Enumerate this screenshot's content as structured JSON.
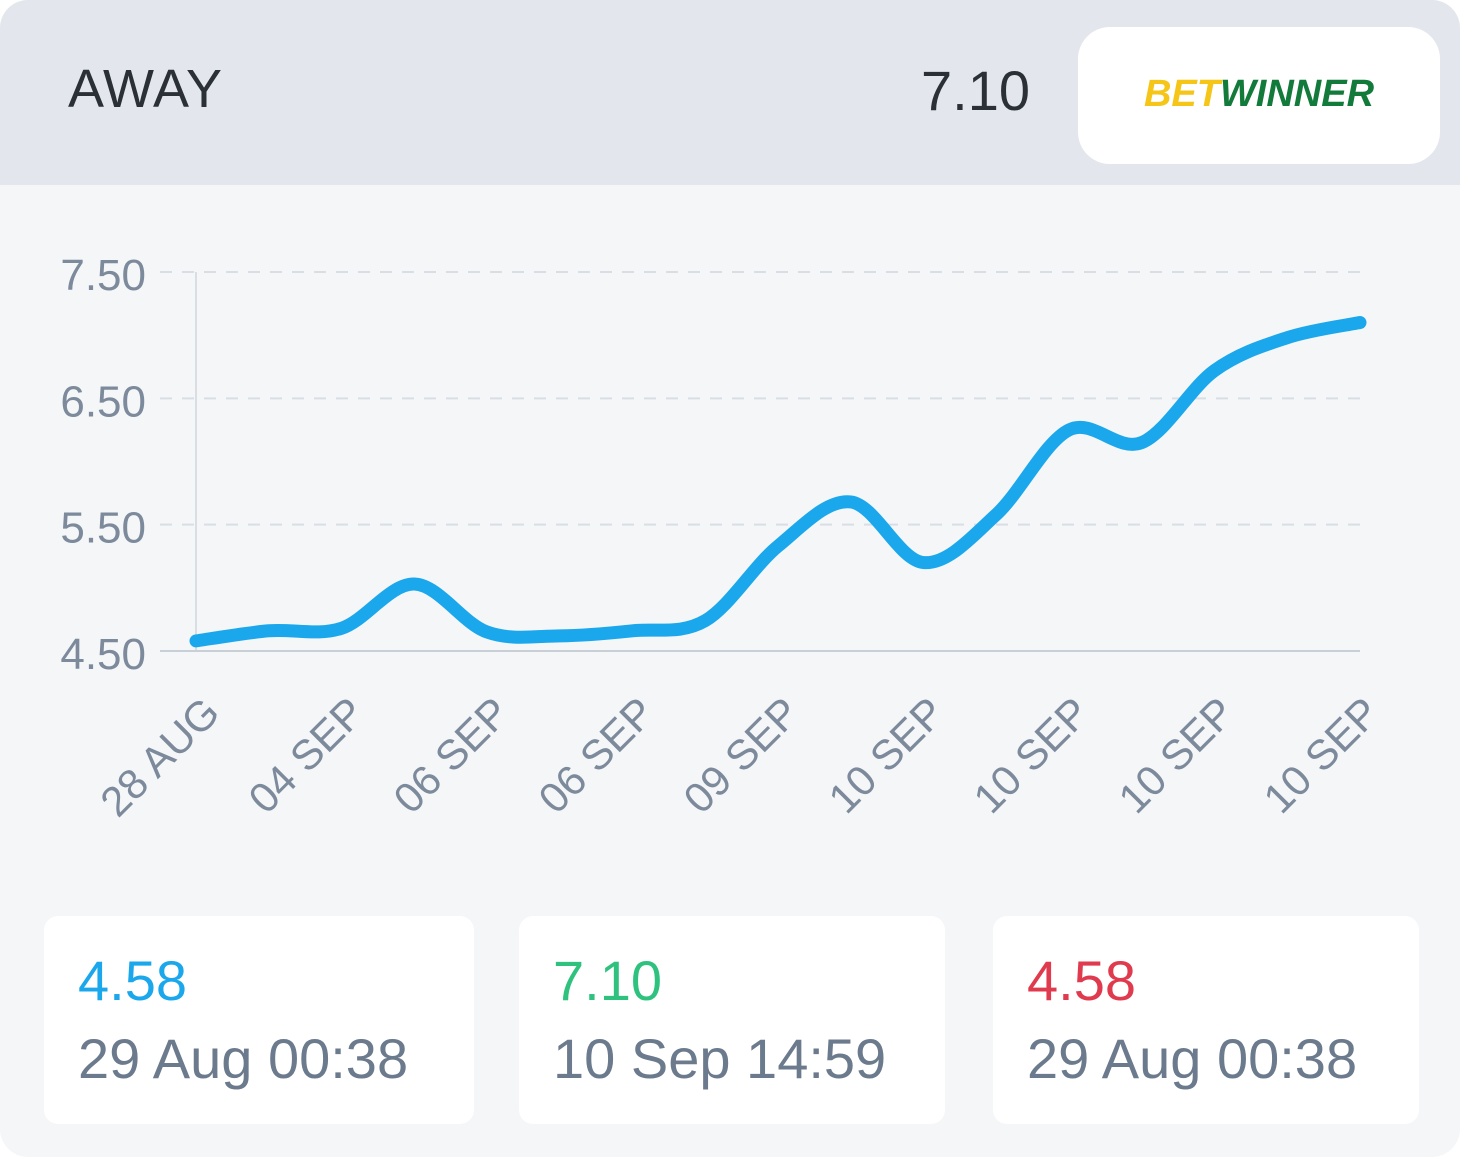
{
  "header": {
    "market_label": "AWAY",
    "current_odds": "7.10",
    "bookmaker_logo": {
      "part1": "BET",
      "part2": "WINNER"
    }
  },
  "colors": {
    "line": "#1aa7ec",
    "opening": "#1aa7ec",
    "max": "#2ec27e",
    "min": "#e03a4e",
    "axis_text": "#7c8a9b",
    "grid": "#d9dee4"
  },
  "chart_data": {
    "type": "line",
    "title": "",
    "xlabel": "",
    "ylabel": "",
    "ylim": [
      4.5,
      7.5
    ],
    "yticks": [
      "7.50",
      "6.50",
      "5.50",
      "4.50"
    ],
    "ytick_values": [
      7.5,
      6.5,
      5.5,
      4.5
    ],
    "xtick_labels": [
      "28 AUG",
      "04 SEP",
      "06 SEP",
      "06 SEP",
      "09 SEP",
      "10 SEP",
      "10 SEP",
      "10 SEP",
      "10 SEP"
    ],
    "grid": true,
    "series": [
      {
        "values": [
          4.58,
          4.66,
          4.68,
          5.03,
          4.65,
          4.62,
          4.66,
          4.74,
          5.33,
          5.68,
          5.2,
          5.58,
          6.25,
          6.15,
          6.72,
          6.98,
          7.1
        ]
      }
    ]
  },
  "stats": [
    {
      "value": "4.58",
      "time": "29 Aug 00:38"
    },
    {
      "value": "7.10",
      "time": "10 Sep 14:59"
    },
    {
      "value": "4.58",
      "time": "29 Aug 00:38"
    }
  ]
}
